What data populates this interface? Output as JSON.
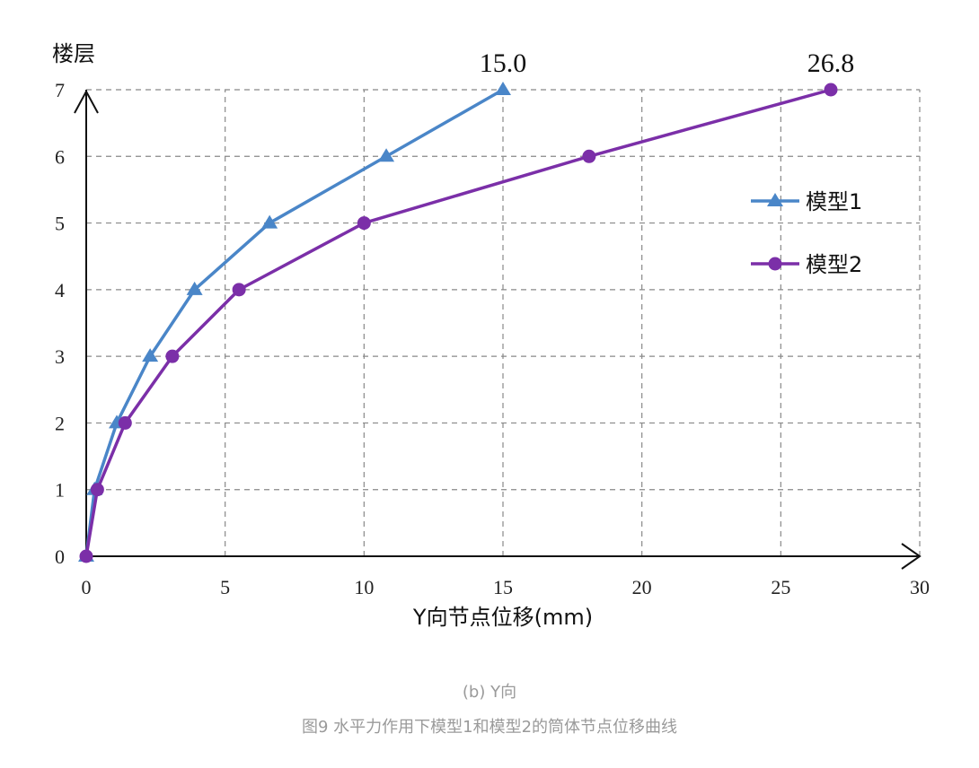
{
  "chart_data": {
    "type": "line",
    "ylabel": "楼层",
    "xlabel": "Y向节点位移(mm)",
    "xlim": [
      0,
      30
    ],
    "ylim": [
      0,
      7
    ],
    "x_ticks": [
      "0",
      "5",
      "10",
      "15",
      "20",
      "25",
      "30"
    ],
    "y_ticks": [
      "0",
      "1",
      "2",
      "3",
      "4",
      "5",
      "6",
      "7"
    ],
    "grid": true,
    "legend_position": "right",
    "series": [
      {
        "name": "模型1",
        "color": "#4a86c8",
        "marker": "triangle",
        "points": [
          [
            0,
            0
          ],
          [
            0.3,
            1
          ],
          [
            1.1,
            2
          ],
          [
            2.3,
            3
          ],
          [
            3.9,
            4
          ],
          [
            6.6,
            5
          ],
          [
            10.8,
            6
          ],
          [
            15.0,
            7
          ]
        ]
      },
      {
        "name": "模型2",
        "color": "#7b2fa8",
        "marker": "circle",
        "points": [
          [
            0,
            0
          ],
          [
            0.4,
            1
          ],
          [
            1.4,
            2
          ],
          [
            3.1,
            3
          ],
          [
            5.5,
            4
          ],
          [
            10.0,
            5
          ],
          [
            18.1,
            6
          ],
          [
            26.8,
            7
          ]
        ]
      }
    ],
    "annotations": [
      "15.0",
      "26.8"
    ]
  },
  "captions": {
    "sub": "(b) Y向",
    "main": "图9 水平力作用下模型1和模型2的筒体节点位移曲线"
  }
}
